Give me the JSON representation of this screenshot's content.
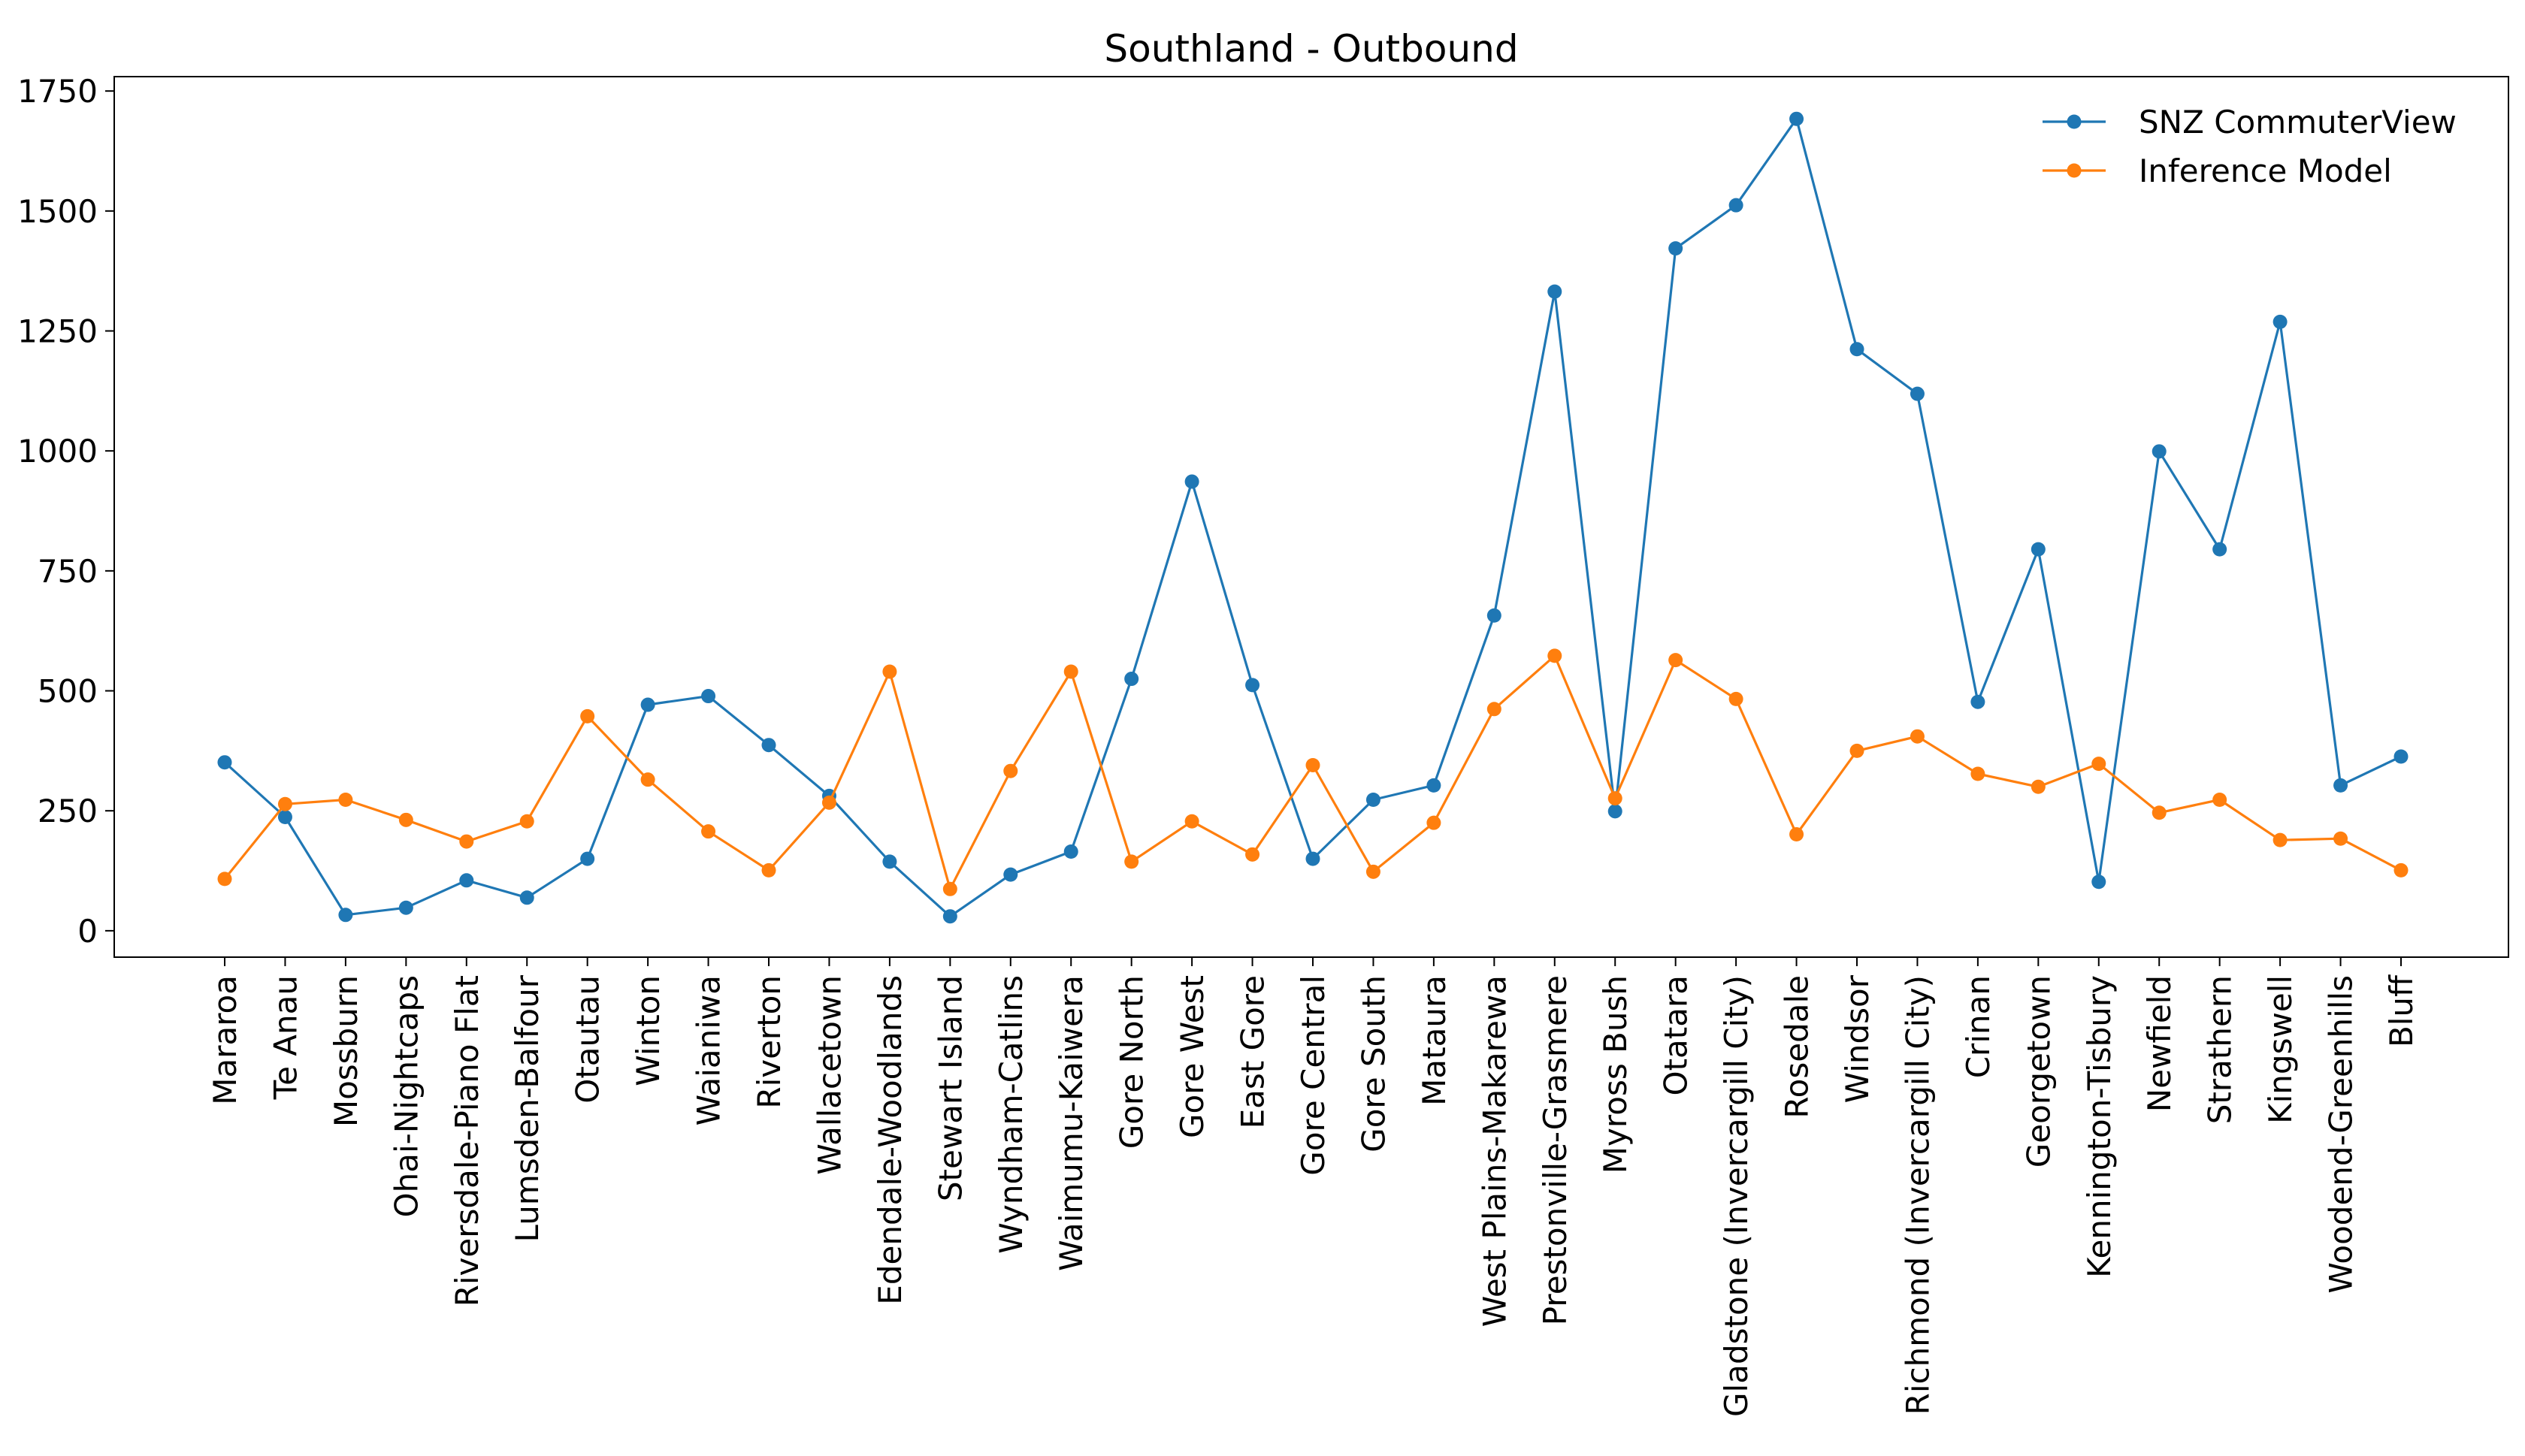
{
  "chart_data": {
    "type": "line",
    "title": "Southland - Outbound",
    "xlabel": "",
    "ylabel": "",
    "ylim": [
      -55,
      1780
    ],
    "yticks": [
      0,
      250,
      500,
      750,
      1000,
      1250,
      1500,
      1750
    ],
    "ytick_labels": [
      "0",
      "250",
      "500",
      "750",
      "1000",
      "1250",
      "1500",
      "1750"
    ],
    "grid": false,
    "legend_position": "top-right",
    "categories": [
      "Mararoa",
      "Te Anau",
      "Mossburn",
      "Ohai-Nightcaps",
      "Riversdale-Piano Flat",
      "Lumsden-Balfour",
      "Otautau",
      "Winton",
      "Waianiwa",
      "Riverton",
      "Wallacetown",
      "Edendale-Woodlands",
      "Stewart Island",
      "Wyndham-Catlins",
      "Waimumu-Kaiwera",
      "Gore North",
      "Gore West",
      "East Gore",
      "Gore Central",
      "Gore South",
      "Mataura",
      "West Plains-Makarewa",
      "Prestonville-Grasmere",
      "Myross Bush",
      "Otatara",
      "Gladstone (Invercargill City)",
      "Rosedale",
      "Windsor",
      "Richmond (Invercargill City)",
      "Crinan",
      "Georgetown",
      "Kennington-Tisbury",
      "Newfield",
      "Strathern",
      "Kingswell",
      "Woodend-Greenhills",
      "Bluff"
    ],
    "series": [
      {
        "name": "SNZ CommuterView",
        "color": "#1f77b4",
        "values": [
          351,
          237,
          33,
          48,
          105,
          69,
          150,
          471,
          489,
          387,
          281,
          144,
          30,
          117,
          165,
          525,
          936,
          512,
          150,
          273,
          303,
          657,
          1332,
          249,
          1422,
          1512,
          1692,
          1212,
          1119,
          477,
          795,
          102,
          999,
          795,
          1269,
          303,
          363
        ]
      },
      {
        "name": "Inference Model",
        "color": "#ff7f0e",
        "values": [
          108,
          264,
          273,
          231,
          186,
          228,
          447,
          315,
          207,
          126,
          267,
          540,
          87,
          333,
          540,
          144,
          228,
          159,
          345,
          123,
          225,
          462,
          573,
          276,
          564,
          483,
          201,
          375,
          405,
          327,
          300,
          348,
          246,
          273,
          189,
          192,
          126
        ]
      }
    ]
  }
}
